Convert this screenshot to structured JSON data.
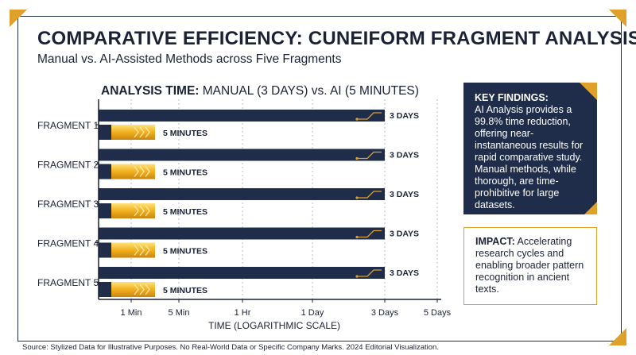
{
  "title": "COMPARATIVE EFFICIENCY: CUNEIFORM FRAGMENT ANALYSIS",
  "subtitle": "Manual vs. AI-Assisted Methods across Five Fragments",
  "chart_title_bold": "ANALYSIS TIME:",
  "chart_title_rest": " MANUAL (3 DAYS) vs. AI (5 MINUTES)",
  "key_findings": {
    "heading": "KEY FINDINGS:",
    "text": "AI Analysis provides a 99.8% time reduction, offering near-instantaneous results for rapid comparative study. Manual methods, while thorough, are time-prohibitive for large datasets."
  },
  "impact": {
    "heading": "IMPACT:",
    "text": " Accelerating research cycles and enabling broader pattern recognition in ancient texts."
  },
  "source": "Source: Stylized Data for Illustrative Purposes. No Real-World Data or Specific Company Marks. 2024 Editorial Visualization.",
  "colors": {
    "manual": "#1f2d4a",
    "ai": "#f2b01e",
    "accent": "#e0a12a",
    "text": "#1b2235"
  },
  "chart_data": {
    "type": "bar",
    "orientation": "horizontal",
    "title": "ANALYSIS TIME: MANUAL (3 DAYS) vs. AI (5 MINUTES)",
    "xlabel": "TIME (LOGARITHMIC SCALE)",
    "x_scale": "log",
    "x_unit": "minutes",
    "x_ticks": [
      {
        "label": "1 Min",
        "value": 1
      },
      {
        "label": "5 Min",
        "value": 5
      },
      {
        "label": "1 Hr",
        "value": 60
      },
      {
        "label": "1 Day",
        "value": 1440
      },
      {
        "label": "3 Days",
        "value": 4320
      },
      {
        "label": "5 Days",
        "value": 7200
      }
    ],
    "categories": [
      "FRAGMENT 1",
      "FRAGMENT 2",
      "FRAGMENT 3",
      "FRAGMENT 4",
      "FRAGMENT 5"
    ],
    "series": [
      {
        "key": "manual",
        "values": [
          4320,
          4320,
          4320,
          4320,
          4320
        ],
        "labels": [
          "3 DAYS",
          "3 DAYS",
          "3 DAYS",
          "3 DAYS",
          "3 DAYS"
        ]
      },
      {
        "key": "ai",
        "values": [
          5,
          5,
          5,
          5,
          5
        ],
        "labels": [
          "5 MINUTES",
          "5 MINUTES",
          "5 MINUTES",
          "5 MINUTES",
          "5 MINUTES"
        ]
      }
    ],
    "grid": "vertical-dashed"
  }
}
